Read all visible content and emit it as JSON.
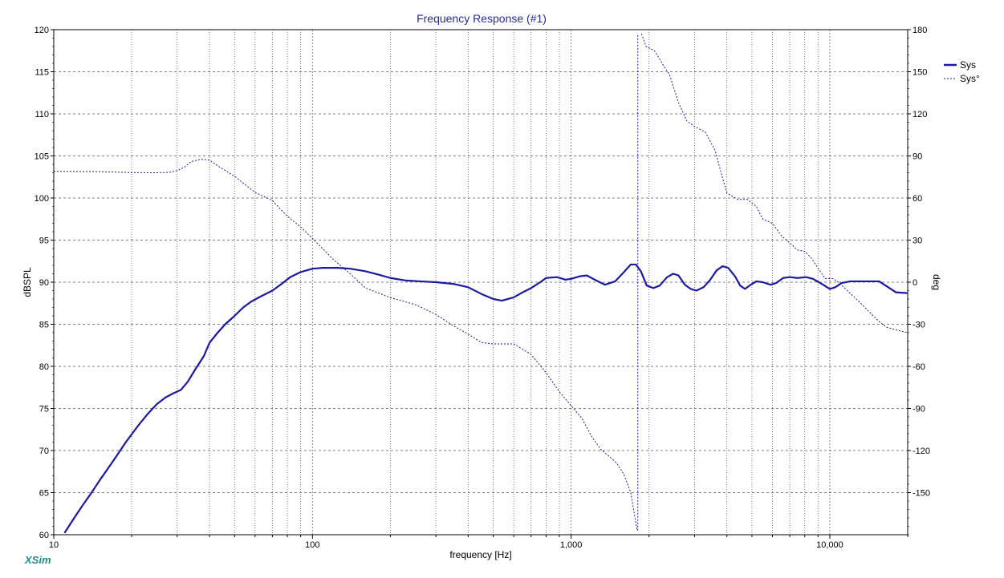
{
  "chart_data": {
    "type": "line",
    "title": "Frequency Response (#1)",
    "xlabel": "frequency [Hz]",
    "ylabel": "dBSPL",
    "y2label": "deg",
    "x_scale": "log",
    "xlim": [
      10,
      20000
    ],
    "ylim": [
      60,
      120
    ],
    "y2lim": [
      -180,
      180
    ],
    "x_tick_labels": [
      {
        "value": 10,
        "label": "10"
      },
      {
        "value": 100,
        "label": "100"
      },
      {
        "value": 1000,
        "label": "1,000"
      },
      {
        "value": 10000,
        "label": "10,000"
      }
    ],
    "y_ticks": [
      60,
      65,
      70,
      75,
      80,
      85,
      90,
      95,
      100,
      105,
      110,
      115,
      120
    ],
    "y2_ticks": [
      -150,
      -120,
      -90,
      -60,
      -30,
      0,
      30,
      60,
      90,
      120,
      150,
      180
    ],
    "grid": true,
    "legend_position": "right",
    "colors": {
      "series": "#1a1aa0",
      "grid": "#555555",
      "decade_grid": "#a05050",
      "title": "#2a2a9a",
      "brand": "#1f8a8a"
    },
    "series": [
      {
        "name": "Sys",
        "axis": "left",
        "style": "solid-thick",
        "points": [
          [
            11,
            60.2
          ],
          [
            12,
            62.0
          ],
          [
            13,
            63.6
          ],
          [
            14,
            65.0
          ],
          [
            15,
            66.4
          ],
          [
            17,
            68.8
          ],
          [
            19,
            71.0
          ],
          [
            21,
            72.8
          ],
          [
            23,
            74.3
          ],
          [
            25,
            75.5
          ],
          [
            27,
            76.3
          ],
          [
            29,
            76.8
          ],
          [
            31,
            77.2
          ],
          [
            33,
            78.2
          ],
          [
            35,
            79.5
          ],
          [
            38,
            81.2
          ],
          [
            40,
            82.8
          ],
          [
            43,
            84.0
          ],
          [
            46,
            85.0
          ],
          [
            50,
            86.0
          ],
          [
            54,
            87.0
          ],
          [
            58,
            87.7
          ],
          [
            63,
            88.3
          ],
          [
            70,
            89.0
          ],
          [
            76,
            89.8
          ],
          [
            82,
            90.6
          ],
          [
            90,
            91.2
          ],
          [
            100,
            91.6
          ],
          [
            110,
            91.7
          ],
          [
            125,
            91.7
          ],
          [
            140,
            91.6
          ],
          [
            160,
            91.3
          ],
          [
            180,
            90.9
          ],
          [
            200,
            90.5
          ],
          [
            230,
            90.2
          ],
          [
            260,
            90.1
          ],
          [
            300,
            90.0
          ],
          [
            350,
            89.8
          ],
          [
            400,
            89.4
          ],
          [
            450,
            88.6
          ],
          [
            500,
            88.0
          ],
          [
            540,
            87.8
          ],
          [
            600,
            88.2
          ],
          [
            650,
            88.8
          ],
          [
            700,
            89.3
          ],
          [
            760,
            90.0
          ],
          [
            800,
            90.5
          ],
          [
            880,
            90.6
          ],
          [
            950,
            90.3
          ],
          [
            1000,
            90.4
          ],
          [
            1080,
            90.7
          ],
          [
            1150,
            90.8
          ],
          [
            1250,
            90.2
          ],
          [
            1350,
            89.7
          ],
          [
            1480,
            90.1
          ],
          [
            1600,
            91.2
          ],
          [
            1700,
            92.1
          ],
          [
            1780,
            92.1
          ],
          [
            1860,
            91.3
          ],
          [
            1960,
            89.6
          ],
          [
            2080,
            89.3
          ],
          [
            2200,
            89.6
          ],
          [
            2350,
            90.6
          ],
          [
            2480,
            91.0
          ],
          [
            2600,
            90.8
          ],
          [
            2750,
            89.7
          ],
          [
            2900,
            89.2
          ],
          [
            3050,
            89.0
          ],
          [
            3250,
            89.4
          ],
          [
            3450,
            90.3
          ],
          [
            3650,
            91.4
          ],
          [
            3850,
            91.9
          ],
          [
            4050,
            91.7
          ],
          [
            4300,
            90.7
          ],
          [
            4500,
            89.6
          ],
          [
            4700,
            89.2
          ],
          [
            4950,
            89.7
          ],
          [
            5200,
            90.1
          ],
          [
            5500,
            90.0
          ],
          [
            5900,
            89.7
          ],
          [
            6200,
            89.9
          ],
          [
            6600,
            90.5
          ],
          [
            7000,
            90.6
          ],
          [
            7500,
            90.5
          ],
          [
            8100,
            90.6
          ],
          [
            8600,
            90.4
          ],
          [
            9300,
            89.8
          ],
          [
            10000,
            89.2
          ],
          [
            10500,
            89.4
          ],
          [
            11100,
            89.9
          ],
          [
            12000,
            90.1
          ],
          [
            13000,
            90.1
          ],
          [
            14000,
            90.1
          ],
          [
            15500,
            90.1
          ],
          [
            17000,
            89.3
          ],
          [
            18000,
            88.8
          ],
          [
            20000,
            88.7
          ]
        ]
      },
      {
        "name": "Sys°",
        "axis": "right",
        "style": "dashed",
        "segments": [
          [
            [
              10,
              79
            ],
            [
              15,
              78.8
            ],
            [
              20,
              78.1
            ],
            [
              25,
              78
            ],
            [
              28,
              78.3
            ],
            [
              30,
              79.5
            ],
            [
              32,
              82
            ],
            [
              34,
              86
            ],
            [
              37,
              87.6
            ],
            [
              40,
              87
            ],
            [
              43,
              83
            ],
            [
              50,
              75.5
            ],
            [
              60,
              64
            ],
            [
              70,
              58.2
            ],
            [
              80,
              47
            ],
            [
              90,
              39.4
            ],
            [
              100,
              31.2
            ],
            [
              120,
              16.5
            ],
            [
              140,
              6
            ],
            [
              160,
              -4
            ],
            [
              200,
              -11
            ],
            [
              250,
              -16
            ],
            [
              300,
              -23
            ],
            [
              350,
              -31
            ],
            [
              400,
              -37
            ],
            [
              450,
              -43
            ],
            [
              500,
              -44
            ],
            [
              600,
              -44
            ],
            [
              700,
              -51.5
            ],
            [
              800,
              -64.5
            ],
            [
              900,
              -78
            ],
            [
              1000,
              -88
            ],
            [
              1100,
              -97
            ],
            [
              1200,
              -110
            ],
            [
              1300,
              -119
            ],
            [
              1400,
              -124
            ],
            [
              1500,
              -129
            ],
            [
              1600,
              -137
            ],
            [
              1700,
              -150
            ],
            [
              1800,
              -177
            ]
          ],
          [
            [
              1870,
              177
            ],
            [
              1950,
              168
            ],
            [
              2100,
              165
            ],
            [
              2200,
              159
            ],
            [
              2300,
              153
            ],
            [
              2400,
              148
            ],
            [
              2600,
              128
            ],
            [
              2800,
              115
            ],
            [
              3000,
              111
            ],
            [
              3300,
              107
            ],
            [
              3600,
              94
            ],
            [
              3800,
              78
            ],
            [
              4000,
              63.5
            ],
            [
              4400,
              59
            ],
            [
              4800,
              59
            ],
            [
              5200,
              54
            ],
            [
              5500,
              45
            ],
            [
              6000,
              42
            ],
            [
              6500,
              33
            ],
            [
              7000,
              28
            ],
            [
              7500,
              23
            ],
            [
              8000,
              22
            ],
            [
              8500,
              17
            ],
            [
              9000,
              10
            ],
            [
              9600,
              2.6
            ],
            [
              10300,
              2.6
            ],
            [
              11000,
              -1.3
            ],
            [
              12000,
              -8
            ],
            [
              13000,
              -14
            ],
            [
              14000,
              -20
            ],
            [
              15500,
              -28
            ],
            [
              16500,
              -32
            ],
            [
              18000,
              -34
            ],
            [
              20000,
              -36
            ]
          ]
        ],
        "wrap_connector": {
          "x": 1810,
          "from": -177,
          "to": 177
        }
      }
    ],
    "brand": "XSim"
  }
}
